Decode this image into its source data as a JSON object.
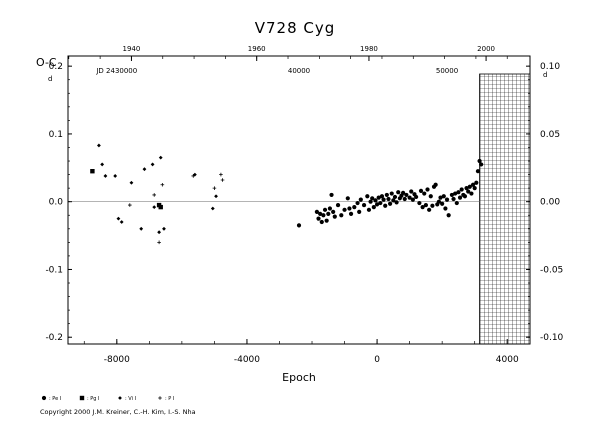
{
  "chart_data": {
    "type": "scatter",
    "title": "V728  Cyg",
    "ylabel": "O-C",
    "y_unit_left": "d",
    "y_unit_right": "d",
    "xlabel": "Epoch",
    "xlim": [
      -9500,
      4700
    ],
    "ylim": [
      -0.21,
      0.215
    ],
    "x_ticks": [
      -8000,
      -4000,
      0,
      4000
    ],
    "x_tick_labels": [
      "-8000",
      "-4000",
      "0",
      "4000"
    ],
    "y_ticks": [
      -0.2,
      -0.1,
      0.0,
      0.1,
      0.2
    ],
    "y_tick_labels": [
      "-0.2",
      "-0.1",
      "0.0",
      "0.1",
      "0.2"
    ],
    "right_axis": {
      "ticks": [
        -0.1,
        -0.05,
        0.0,
        0.05,
        0.1
      ],
      "tick_labels": [
        "-0.10",
        "-0.05",
        "0.00",
        "0.05",
        "0.10"
      ]
    },
    "top_axis": {
      "year_ticks": [
        {
          "label": "1940",
          "epoch": -7550
        },
        {
          "label": "1960",
          "epoch": -3700
        },
        {
          "label": "1980",
          "epoch": -250
        },
        {
          "label": "2000",
          "epoch": 3350
        }
      ],
      "jd_labels": [
        {
          "label": "JD 2430000",
          "epoch": -8000
        },
        {
          "label": "40000",
          "epoch": -2400
        },
        {
          "label": "50000",
          "epoch": 2150
        }
      ]
    },
    "hatched_region": {
      "x_from": 3150,
      "x_to": 4700
    },
    "zero_line": true,
    "legend": [
      {
        "symbol": "circle",
        "label": ": Pe I"
      },
      {
        "symbol": "square",
        "label": ": Pg I"
      },
      {
        "symbol": "diamond",
        "label": ": Vi I"
      },
      {
        "symbol": "plus",
        "label": ": P I"
      }
    ],
    "copyright": "Copyright 2000 J.M. Kreiner, C.-H. Kim, I.-S. Nha",
    "series": [
      {
        "symbol": "circle",
        "points": [
          [
            -2400,
            -0.035
          ],
          [
            -1850,
            -0.015
          ],
          [
            -1800,
            -0.025
          ],
          [
            -1750,
            -0.018
          ],
          [
            -1700,
            -0.03
          ],
          [
            -1650,
            -0.02
          ],
          [
            -1600,
            -0.012
          ],
          [
            -1550,
            -0.028
          ],
          [
            -1500,
            -0.018
          ],
          [
            -1450,
            -0.01
          ],
          [
            -1400,
            0.01
          ],
          [
            -1350,
            -0.015
          ],
          [
            -1300,
            -0.022
          ],
          [
            -1200,
            -0.005
          ],
          [
            -1100,
            -0.02
          ],
          [
            -1000,
            -0.012
          ],
          [
            -900,
            0.005
          ],
          [
            -850,
            -0.01
          ],
          [
            -800,
            -0.018
          ],
          [
            -700,
            -0.008
          ],
          [
            -600,
            -0.002
          ],
          [
            -550,
            -0.015
          ],
          [
            -500,
            0.003
          ],
          [
            -400,
            -0.005
          ],
          [
            -300,
            0.008
          ],
          [
            -250,
            -0.012
          ],
          [
            -200,
            0.0
          ],
          [
            -150,
            0.005
          ],
          [
            -100,
            -0.008
          ],
          [
            -50,
            0.002
          ],
          [
            0,
            -0.004
          ],
          [
            50,
            0.006
          ],
          [
            100,
            -0.002
          ],
          [
            150,
            0.008
          ],
          [
            200,
            0.003
          ],
          [
            250,
            -0.006
          ],
          [
            300,
            0.01
          ],
          [
            350,
            0.004
          ],
          [
            400,
            -0.003
          ],
          [
            450,
            0.012
          ],
          [
            500,
            0.002
          ],
          [
            550,
            0.007
          ],
          [
            600,
            -0.001
          ],
          [
            650,
            0.014
          ],
          [
            700,
            0.005
          ],
          [
            750,
            0.009
          ],
          [
            800,
            0.013
          ],
          [
            850,
            0.004
          ],
          [
            900,
            0.01
          ],
          [
            1000,
            0.006
          ],
          [
            1050,
            0.015
          ],
          [
            1100,
            0.003
          ],
          [
            1150,
            0.011
          ],
          [
            1200,
            0.007
          ],
          [
            1300,
            -0.002
          ],
          [
            1350,
            0.016
          ],
          [
            1400,
            -0.008
          ],
          [
            1450,
            0.012
          ],
          [
            1500,
            -0.005
          ],
          [
            1550,
            0.018
          ],
          [
            1600,
            -0.012
          ],
          [
            1650,
            0.008
          ],
          [
            1700,
            -0.006
          ],
          [
            1750,
            0.022
          ],
          [
            1800,
            0.025
          ],
          [
            1850,
            -0.004
          ],
          [
            1900,
            0.0
          ],
          [
            1950,
            0.006
          ],
          [
            2000,
            -0.003
          ],
          [
            2050,
            0.008
          ],
          [
            2100,
            -0.01
          ],
          [
            2150,
            0.003
          ],
          [
            2200,
            -0.02
          ],
          [
            2300,
            0.01
          ],
          [
            2350,
            0.004
          ],
          [
            2400,
            0.012
          ],
          [
            2450,
            -0.002
          ],
          [
            2500,
            0.014
          ],
          [
            2550,
            0.006
          ],
          [
            2600,
            0.018
          ],
          [
            2650,
            0.01
          ],
          [
            2700,
            0.008
          ],
          [
            2750,
            0.02
          ],
          [
            2800,
            0.015
          ],
          [
            2850,
            0.022
          ],
          [
            2900,
            0.012
          ],
          [
            2950,
            0.025
          ],
          [
            3000,
            0.02
          ],
          [
            3050,
            0.028
          ],
          [
            3100,
            0.045
          ],
          [
            3150,
            0.06
          ],
          [
            3200,
            0.055
          ]
        ]
      },
      {
        "symbol": "square",
        "points": [
          [
            -8750,
            0.045
          ],
          [
            -6700,
            -0.005
          ],
          [
            -6650,
            -0.008
          ]
        ]
      },
      {
        "symbol": "diamond",
        "points": [
          [
            -8550,
            0.083
          ],
          [
            -8450,
            0.055
          ],
          [
            -8350,
            0.038
          ],
          [
            -8050,
            0.038
          ],
          [
            -7950,
            -0.025
          ],
          [
            -7850,
            -0.03
          ],
          [
            -7550,
            0.028
          ],
          [
            -7250,
            -0.04
          ],
          [
            -7150,
            0.048
          ],
          [
            -6900,
            0.055
          ],
          [
            -6850,
            -0.008
          ],
          [
            -6700,
            -0.045
          ],
          [
            -6650,
            0.065
          ],
          [
            -6550,
            -0.04
          ],
          [
            -5600,
            0.04
          ],
          [
            -5050,
            -0.01
          ],
          [
            -4950,
            0.008
          ]
        ]
      },
      {
        "symbol": "plus",
        "points": [
          [
            -7600,
            -0.005
          ],
          [
            -6850,
            0.01
          ],
          [
            -6700,
            -0.06
          ],
          [
            -6600,
            0.025
          ],
          [
            -5650,
            0.038
          ],
          [
            -5000,
            0.02
          ],
          [
            -4800,
            0.04
          ],
          [
            -4750,
            0.032
          ]
        ]
      }
    ]
  }
}
